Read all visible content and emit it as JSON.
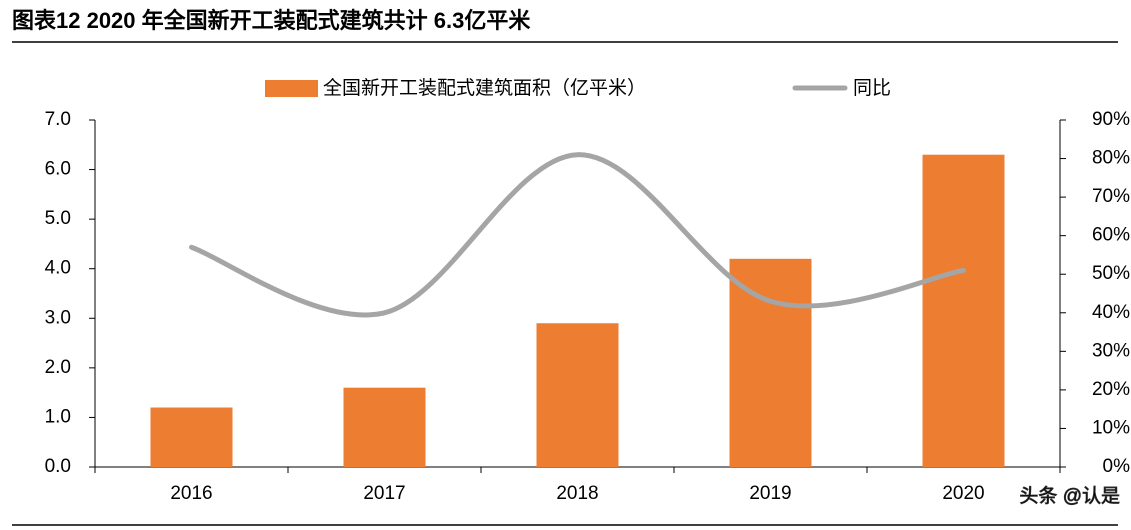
{
  "chart_data": {
    "type": "bar-line",
    "title": "图表12    2020 年全国新开工装配式建筑共计 6.3亿平米",
    "categories": [
      "2016",
      "2017",
      "2018",
      "2019",
      "2020"
    ],
    "series": [
      {
        "name": "全国新开工装配式建筑面积（亿平米）",
        "color": "#ED7D31",
        "type": "bar",
        "values": [
          1.2,
          1.6,
          2.9,
          4.2,
          6.3
        ]
      },
      {
        "name": "同比",
        "color": "#A5A5A5",
        "type": "line",
        "axis": "y2",
        "values": [
          57,
          40,
          81,
          43,
          51
        ]
      }
    ],
    "ylim": [
      0,
      7
    ],
    "yticks": [
      {
        "value": 0,
        "label": "0.0"
      },
      {
        "value": 1,
        "label": "1.0"
      },
      {
        "value": 2,
        "label": "2.0"
      },
      {
        "value": 3,
        "label": "3.0"
      },
      {
        "value": 4,
        "label": "4.0"
      },
      {
        "value": 5,
        "label": "5.0"
      },
      {
        "value": 6,
        "label": "6.0"
      },
      {
        "value": 7,
        "label": "7.0"
      }
    ],
    "y2lim": [
      0,
      90
    ],
    "y2ticks": [
      {
        "value": 0,
        "label": "0%"
      },
      {
        "value": 10,
        "label": "10%"
      },
      {
        "value": 20,
        "label": "20%"
      },
      {
        "value": 30,
        "label": "30%"
      },
      {
        "value": 40,
        "label": "40%"
      },
      {
        "value": 50,
        "label": "50%"
      },
      {
        "value": 60,
        "label": "60%"
      },
      {
        "value": 70,
        "label": "70%"
      },
      {
        "value": 80,
        "label": "80%"
      },
      {
        "value": 90,
        "label": "90%"
      }
    ],
    "legend": "top",
    "watermark": "头条 @认是"
  }
}
